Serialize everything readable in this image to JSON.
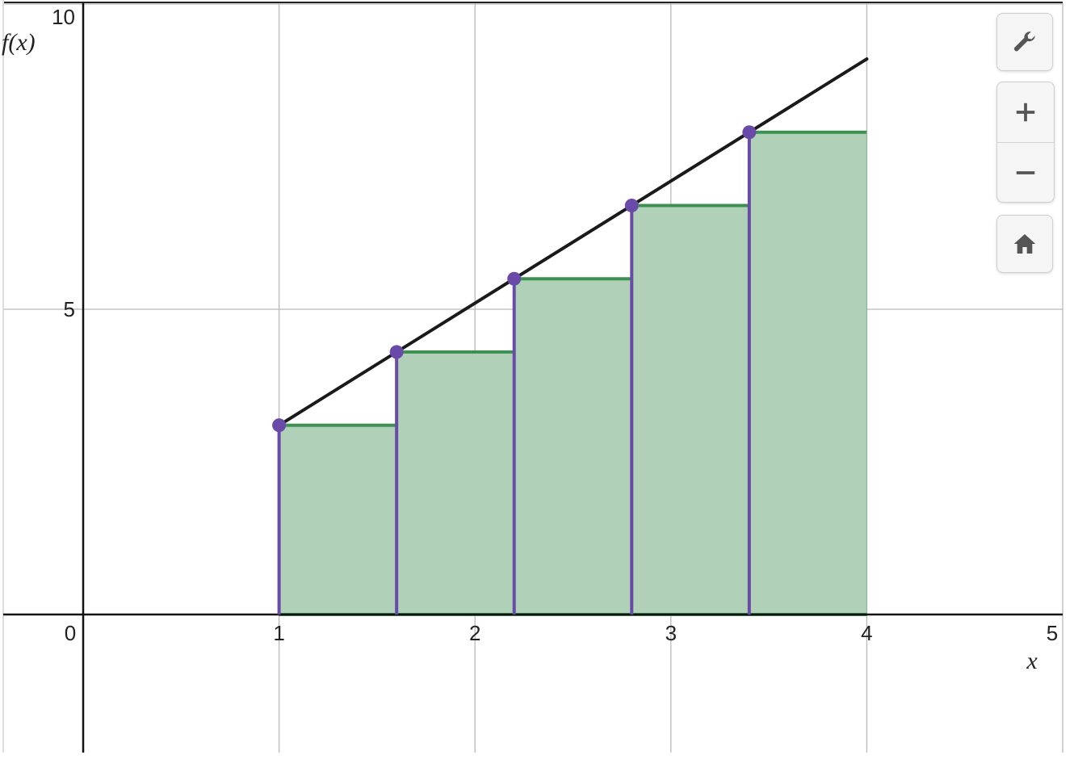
{
  "chart_data": {
    "type": "line",
    "title": "",
    "xlabel": "x",
    "ylabel": "f(x)",
    "xlim": [
      -0.4,
      5.06
    ],
    "ylim": [
      -4.75,
      10.45
    ],
    "grid": true,
    "x_ticks": [
      0,
      1,
      2,
      3,
      4,
      5
    ],
    "y_ticks": [
      5,
      10
    ],
    "x_tick_labels": [
      "0",
      "1",
      "2",
      "3",
      "4",
      "5"
    ],
    "y_tick_labels": [
      "5",
      "10"
    ],
    "function_line": {
      "x": [
        1,
        4
      ],
      "y": [
        3.1,
        9.1
      ],
      "color": "#1a1a1a"
    },
    "rectangles": {
      "left_x": [
        1.0,
        1.6,
        2.2,
        2.8,
        3.4
      ],
      "width": 0.6,
      "height": [
        3.1,
        4.3,
        5.5,
        6.7,
        7.9
      ],
      "fill_color": "#b0d1b8",
      "edge_color": "#3e8f52"
    },
    "sample_points": {
      "x": [
        1.0,
        1.6,
        2.2,
        2.8,
        3.4
      ],
      "y": [
        3.1,
        4.3,
        5.5,
        6.7,
        7.9
      ],
      "color": "#6a4aa8"
    }
  },
  "toolbar": {
    "settings_icon": "wrench-icon",
    "zoom_in_icon": "plus-icon",
    "zoom_out_icon": "minus-icon",
    "home_icon": "home-icon"
  }
}
